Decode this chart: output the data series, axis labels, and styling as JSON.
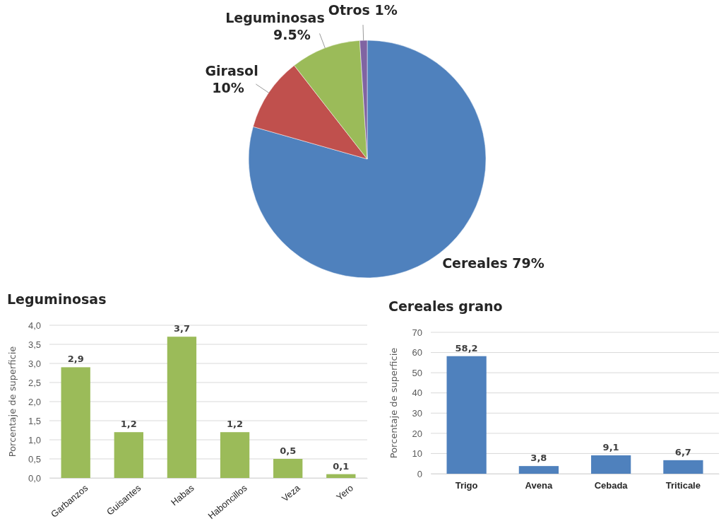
{
  "chart_data": [
    {
      "type": "pie",
      "categories": [
        "Cereales",
        "Girasol",
        "Leguminosas",
        "Otros"
      ],
      "values": [
        79,
        10,
        9.5,
        1
      ],
      "colors": [
        "#4f81bd",
        "#c0504d",
        "#9bbb59",
        "#8064a2"
      ],
      "value_labels": [
        "79%",
        "10%",
        "9.5%",
        "1%"
      ]
    },
    {
      "type": "bar",
      "title": "Leguminosas",
      "ylabel": "Porcentaje de superficie",
      "categories": [
        "Garbanzos",
        "Guisantes",
        "Habas",
        "Haboncillos",
        "Veza",
        "Yero"
      ],
      "values": [
        2.9,
        1.2,
        3.7,
        1.2,
        0.5,
        0.1
      ],
      "color": "#9bbb59",
      "value_labels": [
        "2,9",
        "1,2",
        "3,7",
        "1,2",
        "0,5",
        "0,1"
      ],
      "ylim": [
        0,
        4
      ],
      "yticks": [
        {
          "value": 0,
          "label": "0,0"
        },
        {
          "value": 0.5,
          "label": "0,5"
        },
        {
          "value": 1,
          "label": "1,0"
        },
        {
          "value": 1.5,
          "label": "1,5"
        },
        {
          "value": 2,
          "label": "2,0"
        },
        {
          "value": 2.5,
          "label": "2,5"
        },
        {
          "value": 3,
          "label": "3,0"
        },
        {
          "value": 3.5,
          "label": "3,5"
        },
        {
          "value": 4,
          "label": "4,0"
        }
      ],
      "grid": "y"
    },
    {
      "type": "bar",
      "title": "Cereales grano",
      "ylabel": "Porcentaje de superficie",
      "categories": [
        "Trigo",
        "Avena",
        "Cebada",
        "Triticale"
      ],
      "values": [
        58.2,
        3.8,
        9.1,
        6.7
      ],
      "color": "#4f81bd",
      "value_labels": [
        "58,2",
        "3,8",
        "9,1",
        "6,7"
      ],
      "ylim": [
        0,
        70
      ],
      "yticks": [
        0,
        10,
        20,
        30,
        40,
        50,
        60,
        70
      ],
      "grid": "y"
    }
  ]
}
